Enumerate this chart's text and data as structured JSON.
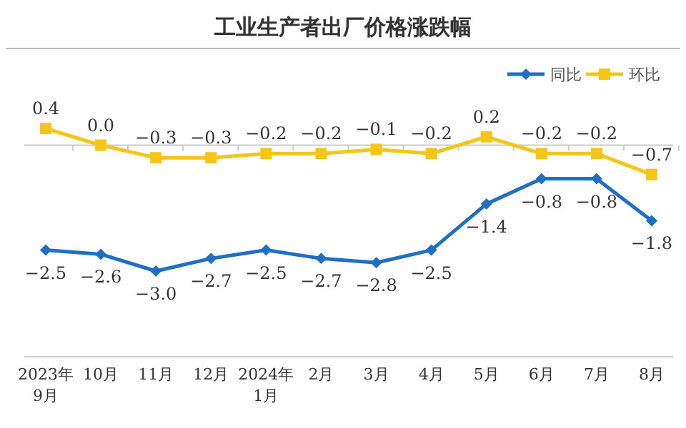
{
  "chart_data": {
    "type": "line",
    "title": "工业生产者出厂价格涨跌幅",
    "categories": [
      "2023年\n9月",
      "10月",
      "11月",
      "12月",
      "2024年\n1月",
      "2月",
      "3月",
      "4月",
      "5月",
      "6月",
      "7月",
      "8月"
    ],
    "series": [
      {
        "name": "同比",
        "color": "#1f6fc5",
        "marker": "diamond",
        "values": [
          -2.5,
          -2.6,
          -3.0,
          -2.7,
          -2.5,
          -2.7,
          -2.8,
          -2.5,
          -1.4,
          -0.8,
          -0.8,
          -1.8
        ],
        "value_labels": [
          "−2.5",
          "−2.6",
          "−3.0",
          "−2.7",
          "−2.5",
          "−2.7",
          "−2.8",
          "−2.5",
          "−1.4",
          "−0.8",
          "−0.8",
          "−1.8"
        ]
      },
      {
        "name": "环比",
        "color": "#f5c518",
        "marker": "square",
        "values": [
          0.4,
          0.0,
          -0.3,
          -0.3,
          -0.2,
          -0.2,
          -0.1,
          -0.2,
          0.2,
          -0.2,
          -0.2,
          -0.7
        ],
        "value_labels": [
          "0.4",
          "0.0",
          "−0.3",
          "−0.3",
          "−0.2",
          "−0.2",
          "−0.1",
          "−0.2",
          "0.2",
          "−0.2",
          "−0.2",
          "−0.7"
        ]
      }
    ],
    "legend": "top right"
  }
}
